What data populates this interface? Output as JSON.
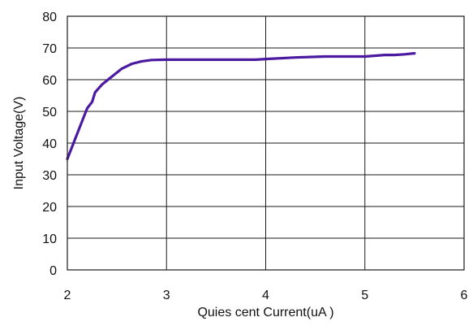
{
  "chart_data": {
    "type": "line",
    "title": "",
    "xlabel": "Quies cent Current(uA )",
    "ylabel": "Input Voltage(V)",
    "xlim": [
      2,
      6
    ],
    "ylim": [
      0,
      80
    ],
    "x_ticks": [
      "2",
      "3",
      "4",
      "5",
      "6"
    ],
    "y_ticks": [
      "0",
      "10",
      "20",
      "30",
      "40",
      "50",
      "60",
      "70",
      "80"
    ],
    "grid": true,
    "legend": "none",
    "series": [
      {
        "color": "#4b1aa0",
        "x": [
          2.0,
          2.1,
          2.2,
          2.25,
          2.27,
          2.28,
          2.35,
          2.45,
          2.55,
          2.65,
          2.75,
          2.85,
          3.0,
          3.5,
          3.9,
          4.0,
          4.3,
          4.6,
          4.9,
          5.0,
          5.2,
          5.3,
          5.4,
          5.5
        ],
        "y": [
          35,
          43,
          51,
          53,
          55,
          56,
          58.5,
          61,
          63.5,
          65,
          65.8,
          66.2,
          66.3,
          66.3,
          66.3,
          66.5,
          67,
          67.3,
          67.3,
          67.3,
          67.8,
          67.8,
          68.0,
          68.3
        ]
      }
    ]
  }
}
